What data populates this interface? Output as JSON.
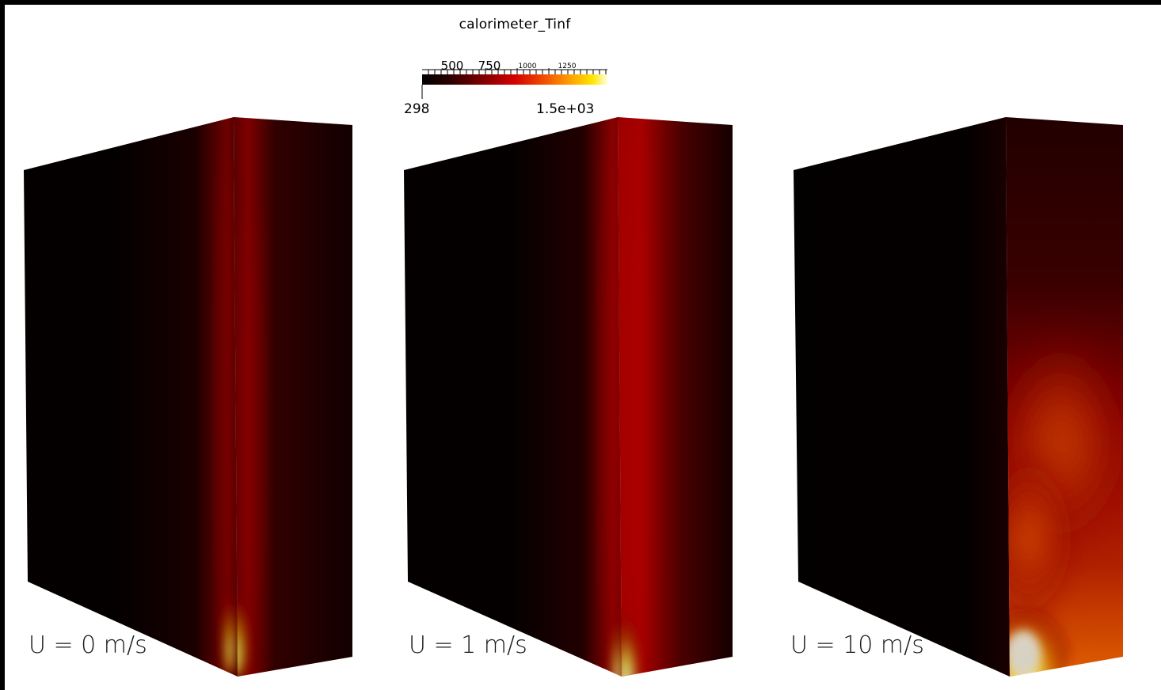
{
  "colorbar": {
    "title": "calorimeter_Tinf",
    "tick_labels": [
      "500",
      "750",
      "1000",
      "1250"
    ],
    "range_min": "298",
    "range_max": "1.5e+03",
    "stops": [
      "#000000",
      "#3a0000",
      "#8a0000",
      "#d40000",
      "#f04a00",
      "#ffa000",
      "#ffe600",
      "#ffffe0"
    ]
  },
  "cases": [
    {
      "label": "U = 0 m/s"
    },
    {
      "label": "U = 1 m/s"
    },
    {
      "label": "U = 10 m/s"
    }
  ]
}
